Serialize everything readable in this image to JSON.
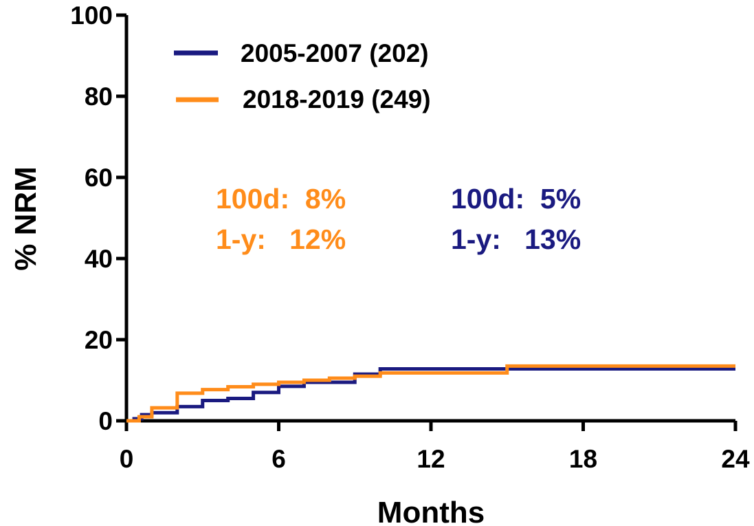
{
  "chart_data": {
    "type": "line",
    "step": true,
    "xlabel": "Months",
    "ylabel": "% NRM",
    "xlim": [
      0,
      24
    ],
    "ylim": [
      0,
      100
    ],
    "xticks": [
      "0",
      "6",
      "12",
      "18",
      "24"
    ],
    "yticks": [
      "0",
      "20",
      "40",
      "60",
      "80",
      "100"
    ],
    "xtick_values": [
      0,
      6,
      12,
      18,
      24
    ],
    "ytick_values": [
      0,
      20,
      40,
      60,
      80,
      100
    ],
    "grid": false,
    "legend_position": "top-left",
    "series": [
      {
        "name": "2005-2007 (202)",
        "color": "#1a1a80",
        "points": [
          [
            0,
            0
          ],
          [
            0.3,
            0.5
          ],
          [
            0.6,
            1.5
          ],
          [
            1.0,
            2.0
          ],
          [
            2.0,
            3.5
          ],
          [
            3.0,
            5.0
          ],
          [
            4.0,
            5.5
          ],
          [
            5.0,
            7.0
          ],
          [
            6.0,
            8.5
          ],
          [
            7.0,
            9.5
          ],
          [
            9.0,
            11.5
          ],
          [
            10.0,
            12.8
          ],
          [
            15.0,
            12.8
          ],
          [
            24.0,
            12.8
          ]
        ]
      },
      {
        "name": "2018-2019 (249)",
        "color": "#ff8c1a",
        "points": [
          [
            0,
            0
          ],
          [
            0.5,
            1.0
          ],
          [
            1.0,
            3.2
          ],
          [
            2.0,
            6.8
          ],
          [
            3.0,
            7.7
          ],
          [
            4.0,
            8.4
          ],
          [
            5.0,
            9.0
          ],
          [
            6.0,
            9.5
          ],
          [
            7.0,
            10.0
          ],
          [
            8.0,
            10.5
          ],
          [
            9.0,
            11.0
          ],
          [
            10.0,
            11.8
          ],
          [
            14.0,
            11.8
          ],
          [
            15.0,
            13.5
          ],
          [
            24.0,
            13.5
          ]
        ]
      }
    ],
    "annotations": [
      {
        "color": "#ff8c1a",
        "line1": "100d:  8%",
        "line2": "1-y:   12%"
      },
      {
        "color": "#1a1a80",
        "line1": "100d:  5%",
        "line2": "1-y:   13%"
      }
    ]
  }
}
